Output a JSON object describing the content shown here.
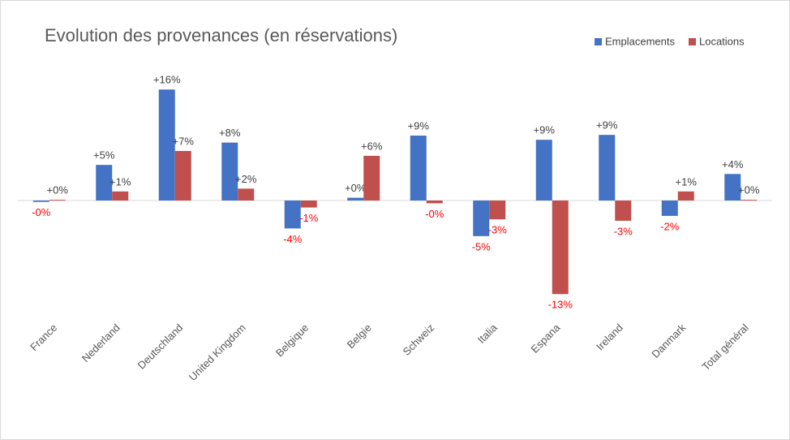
{
  "chart_data": {
    "type": "bar",
    "title": "Evolution des provenances (en réservations)",
    "categories": [
      "France",
      "Nederland",
      "Deutschland",
      "United Kingdom",
      "Belgique",
      "Belgie",
      "Schweiz",
      "Italia",
      "Espana",
      "Ireland",
      "Danmark",
      "Total général"
    ],
    "series": [
      {
        "name": "Emplacements",
        "color": "#4472c4",
        "values": [
          -0.2,
          5.1,
          15.9,
          8.3,
          -4.0,
          0.4,
          9.3,
          -5.1,
          8.7,
          9.4,
          -2.2,
          3.8
        ],
        "value_labels": [
          "-0%",
          "+5%",
          "+16%",
          "+8%",
          "-4%",
          "+0%",
          "+9%",
          "-5%",
          "+9%",
          "+9%",
          "-2%",
          "+4%"
        ]
      },
      {
        "name": "Locations",
        "color": "#c0504d",
        "values": [
          0.1,
          1.3,
          7.1,
          1.7,
          -1.0,
          6.4,
          -0.4,
          -2.7,
          -13.4,
          -2.9,
          1.3,
          0.1
        ],
        "value_labels": [
          "+0%",
          "+1%",
          "+7%",
          "+2%",
          "-1%",
          "+6%",
          "-0%",
          "-3%",
          "-13%",
          "-3%",
          "+1%",
          "+0%"
        ]
      }
    ],
    "ylim": [
      -15,
      20
    ],
    "legend": "top-right"
  }
}
